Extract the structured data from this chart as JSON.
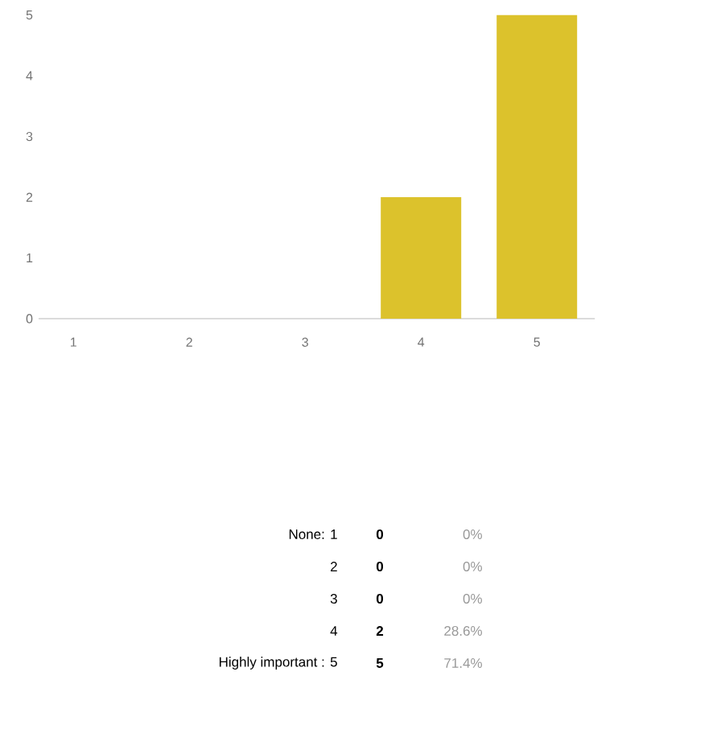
{
  "chart_data": {
    "type": "bar",
    "categories": [
      "1",
      "2",
      "3",
      "4",
      "5"
    ],
    "values": [
      0,
      0,
      0,
      2,
      5
    ],
    "color": "#dcc22c",
    "ylim": [
      0,
      5
    ],
    "yticks": [
      0,
      1,
      2,
      3,
      4,
      5
    ],
    "grid": false,
    "annotations": [
      "None: 1",
      "2",
      "3",
      "4",
      "Highly important : 5",
      "**0**",
      "**0**",
      "**0**",
      "**2**",
      "**5**",
      "0%",
      "0%",
      "0%",
      "28.6%",
      "71.4%"
    ]
  }
}
